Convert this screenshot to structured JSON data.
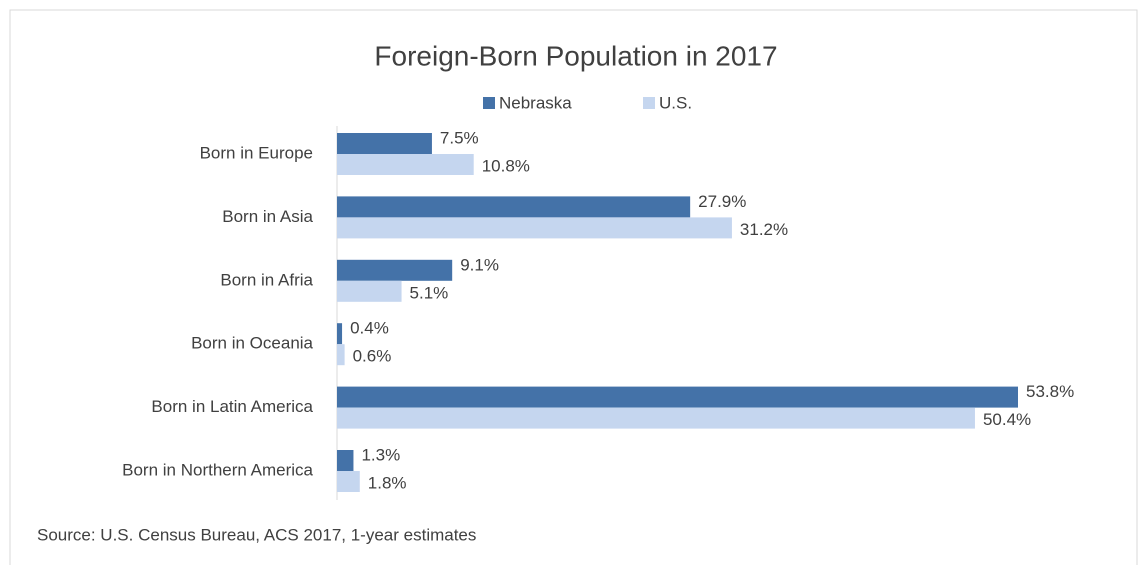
{
  "chart_data": {
    "type": "bar",
    "orientation": "horizontal",
    "title": "Foreign-Born Population in 2017",
    "categories": [
      "Born in Europe",
      "Born in Asia",
      "Born in Afria",
      "Born in Oceania",
      "Born in Latin America",
      "Born in Northern America"
    ],
    "series": [
      {
        "name": "Nebraska",
        "color": "#4472a8",
        "values": [
          7.5,
          27.9,
          9.1,
          0.4,
          53.8,
          1.3
        ],
        "value_labels": [
          "7.5%",
          "27.9%",
          "9.1%",
          "0.4%",
          "53.8%",
          "1.3%"
        ]
      },
      {
        "name": "U.S.",
        "color": "#c5d6ef",
        "values": [
          10.8,
          31.2,
          5.1,
          0.6,
          50.4,
          1.8
        ],
        "value_labels": [
          "10.8%",
          "31.2%",
          "5.1%",
          "0.6%",
          "50.4%",
          "1.8%"
        ]
      }
    ],
    "legend": "top",
    "source": "Source: U.S. Census Bureau, ACS 2017, 1-year estimates"
  }
}
